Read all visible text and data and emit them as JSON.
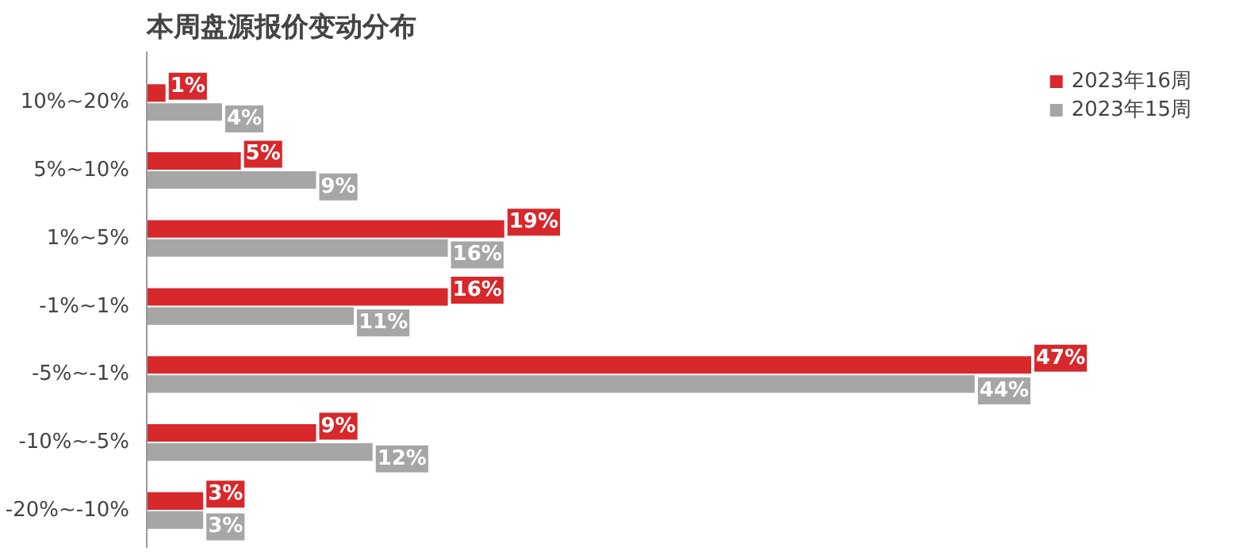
{
  "chart_data": {
    "type": "bar",
    "orientation": "horizontal",
    "title": "本周盘源报价变动分布",
    "categories": [
      "10%~20%",
      "5%~10%",
      "1%~5%",
      "-1%~1%",
      "-5%~-1%",
      "-10%~-5%",
      "-20%~-10%"
    ],
    "series": [
      {
        "name": "2023年16周",
        "color": "#d7282b",
        "values": [
          1,
          5,
          19,
          16,
          47,
          9,
          3
        ],
        "value_labels": [
          "1%",
          "5%",
          "19%",
          "16%",
          "47%",
          "9%",
          "3%"
        ]
      },
      {
        "name": "2023年15周",
        "color": "#a6a6a6",
        "values": [
          4,
          9,
          16,
          11,
          44,
          12,
          3
        ],
        "value_labels": [
          "4%",
          "9%",
          "16%",
          "11%",
          "44%",
          "12%",
          "3%"
        ]
      }
    ],
    "legend": "top right",
    "grid": false
  }
}
